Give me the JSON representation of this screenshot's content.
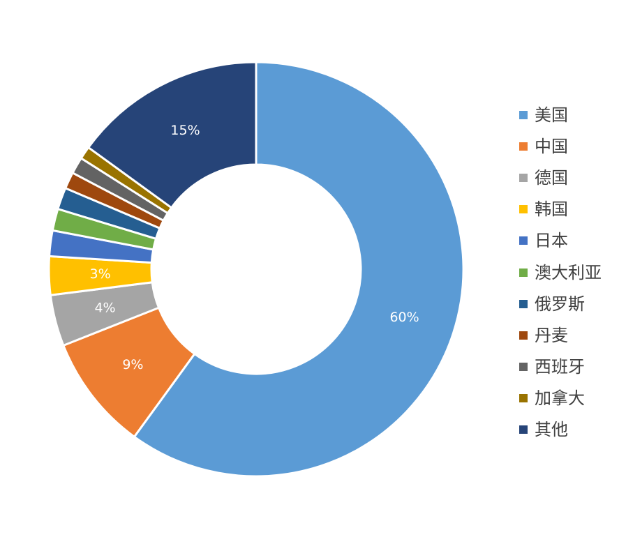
{
  "chart_data": {
    "type": "pie",
    "variant": "donut",
    "series": [
      {
        "name": "美国",
        "value": 60,
        "color": "#5B9BD5",
        "label": "60%"
      },
      {
        "name": "中国",
        "value": 9,
        "color": "#ED7D31",
        "label": "9%"
      },
      {
        "name": "德国",
        "value": 4,
        "color": "#A5A5A5",
        "label": "4%"
      },
      {
        "name": "韩国",
        "value": 3,
        "color": "#FFC000",
        "label": "3%"
      },
      {
        "name": "日本",
        "value": 2,
        "color": "#4472C4",
        "label": ""
      },
      {
        "name": "澳大利亚",
        "value": 1.7,
        "color": "#70AD47",
        "label": ""
      },
      {
        "name": "俄罗斯",
        "value": 1.7,
        "color": "#255E91",
        "label": ""
      },
      {
        "name": "丹麦",
        "value": 1.3,
        "color": "#9E480E",
        "label": ""
      },
      {
        "name": "西班牙",
        "value": 1.3,
        "color": "#636363",
        "label": ""
      },
      {
        "name": "加拿大",
        "value": 1,
        "color": "#997300",
        "label": ""
      },
      {
        "name": "其他",
        "value": 15,
        "color": "#264478",
        "label": "15%"
      }
    ],
    "legend_position": "right"
  }
}
